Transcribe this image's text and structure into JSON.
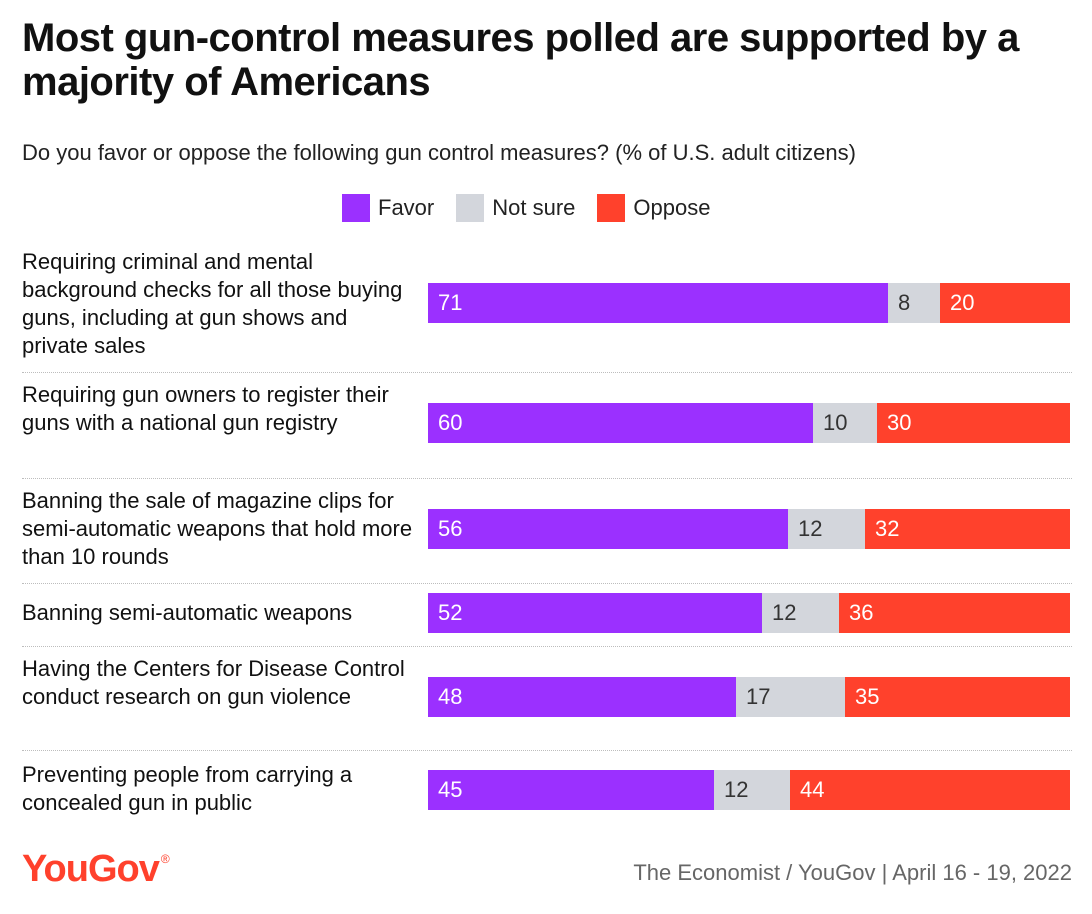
{
  "header": {
    "title": "Most gun-control measures polled are supported by a majority of Americans",
    "subtitle": "Do you favor or oppose the following gun control measures? (% of U.S. adult citizens)"
  },
  "legend": [
    {
      "label": "Favor",
      "color": "#9b30ff"
    },
    {
      "label": "Not sure",
      "color": "#d3d6dc"
    },
    {
      "label": "Oppose",
      "color": "#ff412c"
    }
  ],
  "chart_data": {
    "type": "bar",
    "orientation": "horizontal",
    "stacked": true,
    "xlim": [
      0,
      100
    ],
    "grid": false,
    "legend_position": "top",
    "categories": [
      "Requiring criminal and mental background checks for all those buying guns, including at gun shows and private sales",
      "Requiring gun owners to register their guns with a national gun registry",
      "Banning the sale of magazine clips for semi-automatic weapons that hold more than 10 rounds",
      "Banning semi-automatic weapons",
      "Having the Centers for Disease Control conduct research on gun violence",
      "Preventing people from carrying a concealed gun in public"
    ],
    "series": [
      {
        "name": "Favor",
        "color": "#9b30ff",
        "values": [
          71,
          60,
          56,
          52,
          48,
          45
        ]
      },
      {
        "name": "Not sure",
        "color": "#d3d6dc",
        "values": [
          8,
          10,
          12,
          12,
          17,
          12
        ]
      },
      {
        "name": "Oppose",
        "color": "#ff412c",
        "values": [
          20,
          30,
          32,
          36,
          35,
          44
        ]
      }
    ]
  },
  "footer": {
    "logo": "YouGov",
    "logo_mark": "®",
    "source": "The Economist / YouGov | April 16 - 19, 2022"
  }
}
